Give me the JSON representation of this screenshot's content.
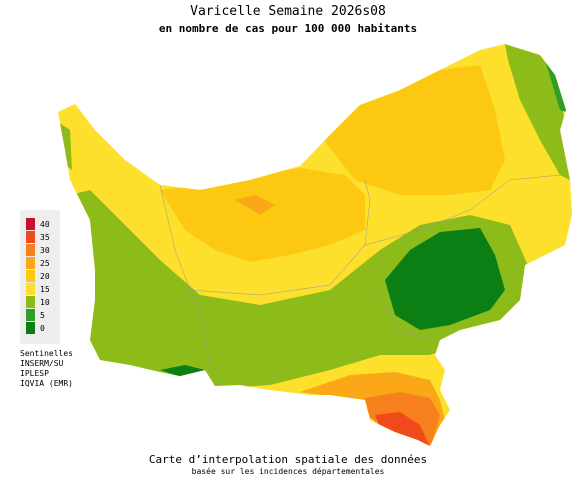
{
  "header": {
    "title": "Varicelle Semaine 2026s08",
    "subtitle": "en nombre de cas pour 100 000 habitants"
  },
  "legend": {
    "items": [
      {
        "label": "40",
        "color": "#c8102e"
      },
      {
        "label": "35",
        "color": "#f04a1c"
      },
      {
        "label": "30",
        "color": "#f7801e"
      },
      {
        "label": "25",
        "color": "#fba818"
      },
      {
        "label": "20",
        "color": "#fcc812"
      },
      {
        "label": "15",
        "color": "#fde02c"
      },
      {
        "label": "10",
        "color": "#8cbb1a"
      },
      {
        "label": "5",
        "color": "#2f9e28"
      },
      {
        "label": "0",
        "color": "#0b7e14"
      }
    ]
  },
  "sources": [
    "Sentinelles",
    "INSERM/SU",
    "IPLESP",
    "IQVIA (EMR)"
  ],
  "footer": {
    "line1": "Carte d’interpolation spatiale des données",
    "line2": "basée sur les incidences départementales"
  }
}
